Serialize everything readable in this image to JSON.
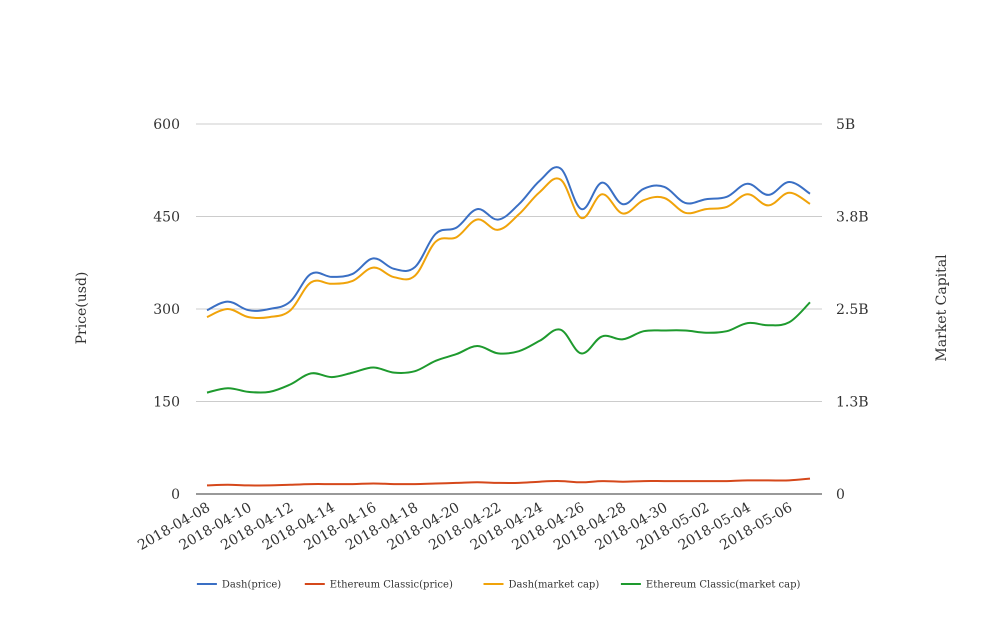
{
  "chart_data": {
    "type": "line",
    "x": [
      "2018-04-08",
      "2018-04-09",
      "2018-04-10",
      "2018-04-11",
      "2018-04-12",
      "2018-04-13",
      "2018-04-14",
      "2018-04-15",
      "2018-04-16",
      "2018-04-17",
      "2018-04-18",
      "2018-04-19",
      "2018-04-20",
      "2018-04-21",
      "2018-04-22",
      "2018-04-23",
      "2018-04-24",
      "2018-04-25",
      "2018-04-26",
      "2018-04-27",
      "2018-04-28",
      "2018-04-29",
      "2018-04-30",
      "2018-05-01",
      "2018-05-02",
      "2018-05-03",
      "2018-05-04",
      "2018-05-05",
      "2018-05-06",
      "2018-05-07"
    ],
    "x_tick_labels": [
      "2018-04-08",
      "2018-04-10",
      "2018-04-12",
      "2018-04-14",
      "2018-04-16",
      "2018-04-18",
      "2018-04-20",
      "2018-04-22",
      "2018-04-24",
      "2018-04-26",
      "2018-04-28",
      "2018-04-30",
      "2018-05-02",
      "2018-05-04",
      "2018-05-06"
    ],
    "ylabel_left": "Price(usd)",
    "ylabel_right": "Market Capital",
    "ylim_left": [
      0,
      600
    ],
    "ylim_right": [
      0,
      5000000000
    ],
    "yticks_left": [
      "0",
      "150",
      "300",
      "450",
      "600"
    ],
    "yticks_right": [
      "0",
      "1.3B",
      "2.5B",
      "3.8B",
      "5B"
    ],
    "grid": true,
    "legend_position": "bottom",
    "series": [
      {
        "name": "Dash(price)",
        "axis": "left",
        "color": "#3a6fc4",
        "values": [
          298,
          312,
          298,
          300,
          312,
          357,
          352,
          357,
          382,
          365,
          368,
          422,
          432,
          462,
          445,
          470,
          508,
          528,
          462,
          505,
          470,
          495,
          498,
          472,
          478,
          482,
          503,
          485,
          506,
          487
        ]
      },
      {
        "name": "Ethereum Classic(price)",
        "axis": "left",
        "color": "#d5481b",
        "values": [
          14,
          15,
          14,
          14,
          15,
          16,
          16,
          16,
          17,
          16,
          16,
          17,
          18,
          19,
          18,
          18,
          20,
          21,
          19,
          21,
          20,
          21,
          21,
          21,
          21,
          21,
          22,
          22,
          22,
          25
        ]
      },
      {
        "name": "Dash(market cap)",
        "axis": "right",
        "color": "#f0a30a",
        "values": [
          2390000000,
          2500000000,
          2390000000,
          2390000000,
          2480000000,
          2860000000,
          2840000000,
          2880000000,
          3060000000,
          2930000000,
          2950000000,
          3410000000,
          3470000000,
          3710000000,
          3570000000,
          3780000000,
          4080000000,
          4250000000,
          3730000000,
          4050000000,
          3790000000,
          3970000000,
          4000000000,
          3800000000,
          3850000000,
          3880000000,
          4050000000,
          3900000000,
          4070000000,
          3920000000
        ]
      },
      {
        "name": "Ethereum Classic(market cap)",
        "axis": "right",
        "color": "#1e9a2e",
        "values": [
          1370000000,
          1430000000,
          1380000000,
          1380000000,
          1480000000,
          1630000000,
          1580000000,
          1640000000,
          1710000000,
          1640000000,
          1660000000,
          1800000000,
          1890000000,
          2000000000,
          1900000000,
          1930000000,
          2070000000,
          2220000000,
          1900000000,
          2130000000,
          2090000000,
          2200000000,
          2210000000,
          2210000000,
          2180000000,
          2200000000,
          2310000000,
          2280000000,
          2320000000,
          2590000000
        ]
      }
    ]
  }
}
